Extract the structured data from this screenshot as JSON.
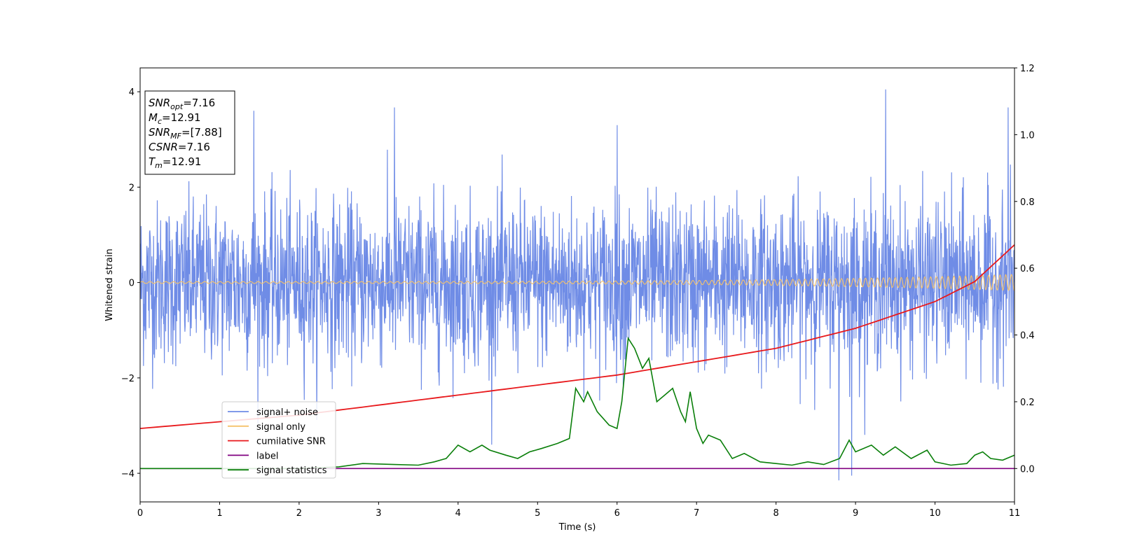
{
  "chart_data": {
    "type": "line",
    "xlabel": "Time (s)",
    "ylabel": "Whitened strain",
    "xlim": [
      0,
      11
    ],
    "ylim_left": [
      -4.6,
      4.5
    ],
    "ylim_right": [
      -0.1,
      1.2
    ],
    "x_ticks": [
      "0",
      "1",
      "2",
      "3",
      "4",
      "5",
      "6",
      "7",
      "8",
      "9",
      "10",
      "11"
    ],
    "y_ticks_left": [
      "4",
      "2",
      "0",
      "−2",
      "−4"
    ],
    "y_ticks_right": [
      "1.2",
      "1.0",
      "0.8",
      "0.6",
      "0.4",
      "0.2",
      "0.0"
    ],
    "annotation": {
      "lines": [
        {
          "sym": "SNR",
          "sub": "opt",
          "rest": "=7.16"
        },
        {
          "sym": "M",
          "sub": "c",
          "rest": "=12.91"
        },
        {
          "sym": "SNR",
          "sub": "MF",
          "rest": "=[7.88]"
        },
        {
          "sym": "CSNR",
          "sub": "",
          "rest": "=7.16"
        },
        {
          "sym": "T",
          "sub": "m",
          "rest": "=12.91"
        }
      ]
    },
    "legend": {
      "position": "lower-left",
      "entries": [
        {
          "label": "signal+ noise",
          "color": "#6f8ce6"
        },
        {
          "label": "signal only",
          "color": "#f5c26b"
        },
        {
          "label": "cumilative SNR",
          "color": "#e8191c"
        },
        {
          "label": "label",
          "color": "#800080"
        },
        {
          "label": "signal statistics",
          "color": "#0a7f0a"
        }
      ]
    },
    "series": [
      {
        "name": "signal+ noise",
        "axis": "left",
        "color": "#6f8ce6",
        "noise_sigma": 0.85,
        "notable_peaks": [
          [
            1.43,
            3.6
          ],
          [
            3.2,
            3.67
          ],
          [
            6.0,
            3.3
          ],
          [
            9.38,
            4.05
          ],
          [
            10.92,
            3.67
          ],
          [
            8.79,
            -4.15
          ],
          [
            8.95,
            -4.05
          ]
        ]
      },
      {
        "name": "signal only",
        "axis": "left",
        "color": "#f5c26b",
        "amplitude_start": 0.02,
        "amplitude_end": 0.17
      },
      {
        "name": "cumilative SNR",
        "axis": "right",
        "color": "#e8191c",
        "x": [
          0,
          1,
          2,
          3,
          4,
          5,
          6,
          7,
          8,
          9,
          10,
          10.5,
          11
        ],
        "y": [
          0.12,
          0.14,
          0.16,
          0.19,
          0.22,
          0.25,
          0.28,
          0.32,
          0.36,
          0.42,
          0.5,
          0.56,
          0.67
        ]
      },
      {
        "name": "label",
        "axis": "right",
        "color": "#800080",
        "x": [
          0,
          11
        ],
        "y": [
          0.0,
          0.0
        ]
      },
      {
        "name": "signal statistics",
        "axis": "right",
        "color": "#0a7f0a",
        "x": [
          0,
          0.5,
          1,
          1.5,
          2,
          2.5,
          2.8,
          3.2,
          3.5,
          3.7,
          3.85,
          4.0,
          4.15,
          4.3,
          4.4,
          4.6,
          4.75,
          4.9,
          5.05,
          5.25,
          5.4,
          5.48,
          5.58,
          5.63,
          5.75,
          5.9,
          6.0,
          6.06,
          6.14,
          6.22,
          6.32,
          6.4,
          6.5,
          6.6,
          6.7,
          6.8,
          6.86,
          6.92,
          7.0,
          7.08,
          7.15,
          7.3,
          7.45,
          7.6,
          7.8,
          8.0,
          8.2,
          8.4,
          8.6,
          8.8,
          8.92,
          9.0,
          9.2,
          9.35,
          9.5,
          9.7,
          9.9,
          10.0,
          10.2,
          10.4,
          10.5,
          10.6,
          10.7,
          10.85,
          11
        ],
        "y": [
          0.0,
          0.0,
          0.0,
          0.0,
          0.0,
          0.005,
          0.015,
          0.012,
          0.01,
          0.02,
          0.03,
          0.07,
          0.05,
          0.07,
          0.055,
          0.04,
          0.03,
          0.05,
          0.06,
          0.075,
          0.09,
          0.24,
          0.2,
          0.23,
          0.17,
          0.13,
          0.12,
          0.2,
          0.39,
          0.36,
          0.3,
          0.33,
          0.2,
          0.22,
          0.24,
          0.17,
          0.14,
          0.23,
          0.12,
          0.075,
          0.1,
          0.085,
          0.03,
          0.045,
          0.02,
          0.015,
          0.01,
          0.02,
          0.012,
          0.03,
          0.085,
          0.05,
          0.07,
          0.04,
          0.065,
          0.03,
          0.055,
          0.02,
          0.01,
          0.015,
          0.04,
          0.05,
          0.03,
          0.025,
          0.04
        ]
      }
    ]
  }
}
